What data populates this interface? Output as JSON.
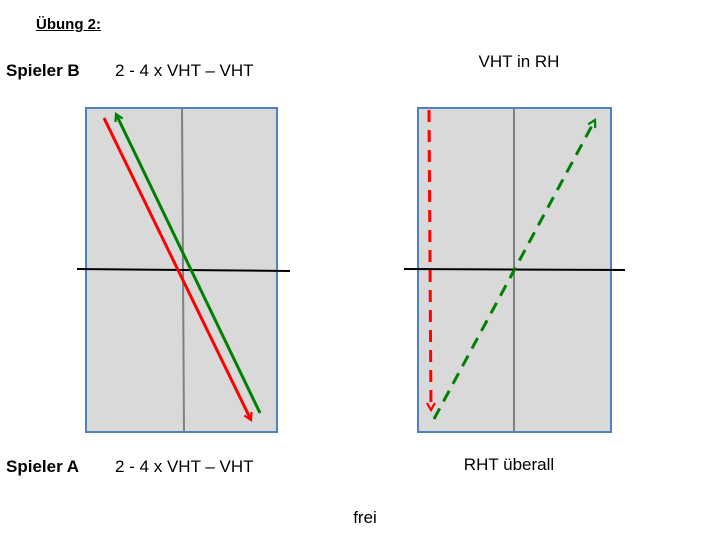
{
  "exercise": {
    "title": "Übung 2:"
  },
  "player_b": {
    "label": "Spieler B",
    "drill": "2 - 4 x VHT – VHT"
  },
  "player_a": {
    "label": "Spieler A",
    "drill": "2 - 4 x VHT – VHT"
  },
  "right_table": {
    "top_caption": "VHT in RH",
    "bottom_caption": "RHT überall"
  },
  "footer": {
    "text": "frei"
  },
  "colors": {
    "table_fill": "#d9d9d9",
    "table_border": "#4f81bd",
    "center_line": "#808080",
    "net": "#000000",
    "red_stroke": "#ff0000",
    "green_stroke": "#008000"
  }
}
